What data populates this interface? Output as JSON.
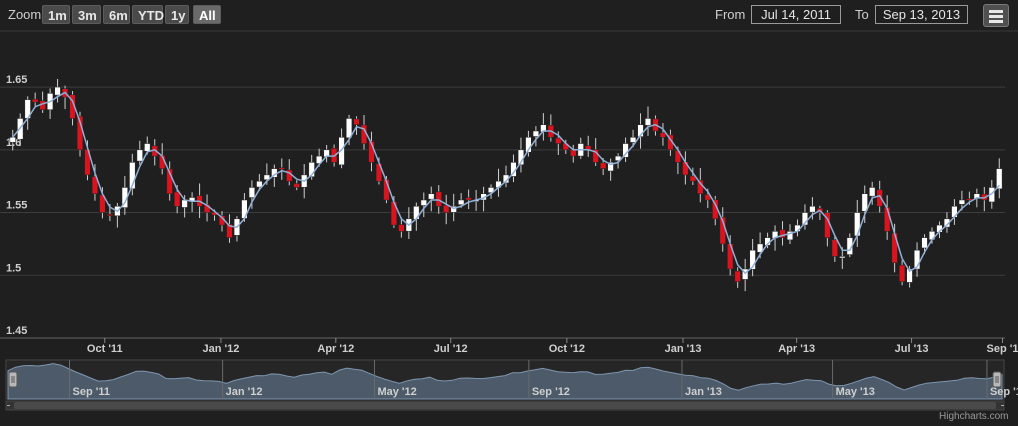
{
  "range_selector": {
    "zoom_label": "Zoom",
    "buttons": [
      "1m",
      "3m",
      "6m",
      "YTD",
      "1y",
      "All"
    ],
    "active": "All",
    "from_label": "From",
    "from_value": "Jul 14, 2011",
    "to_label": "To",
    "to_value": "Sep 13, 2013"
  },
  "export_icon": "menu-icon",
  "credits": "Highcharts.com",
  "colors": {
    "background": "#1f1f1f",
    "up_candle": "#ffffff",
    "down_candle": "#d9141e",
    "moving_average": "#8fb0d8",
    "navigator_fill": "#4c5a6a"
  },
  "chart_data": {
    "type": "candlestick",
    "x_start": "2011-07-14",
    "x_end": "2013-09-13",
    "period": "weekly",
    "ylim": [
      1.45,
      1.67
    ],
    "y_ticks": [
      "1.45",
      "1.5",
      "1.55",
      "1.6",
      "1.65"
    ],
    "y_tick_values": [
      1.45,
      1.5,
      1.55,
      1.6,
      1.65
    ],
    "x_ticks": [
      {
        "label": "Oct '11",
        "date": "2011-10-01"
      },
      {
        "label": "Jan '12",
        "date": "2012-01-01"
      },
      {
        "label": "Apr '12",
        "date": "2012-04-01"
      },
      {
        "label": "Jul '12",
        "date": "2012-07-01"
      },
      {
        "label": "Oct '12",
        "date": "2012-10-01"
      },
      {
        "label": "Jan '13",
        "date": "2013-01-01"
      },
      {
        "label": "Apr '13",
        "date": "2013-04-01"
      },
      {
        "label": "Jul '13",
        "date": "2013-07-01"
      },
      {
        "label": "Sep '1",
        "date": "2013-09-11"
      }
    ],
    "grid": true,
    "moving_average": true,
    "closes": [
      1.61,
      1.625,
      1.64,
      1.638,
      1.632,
      1.645,
      1.65,
      1.642,
      1.625,
      1.6,
      1.58,
      1.565,
      1.55,
      1.548,
      1.555,
      1.57,
      1.59,
      1.6,
      1.605,
      1.595,
      1.585,
      1.565,
      1.555,
      1.56,
      1.562,
      1.555,
      1.55,
      1.548,
      1.54,
      1.53,
      1.545,
      1.56,
      1.57,
      1.575,
      1.58,
      1.585,
      1.585,
      1.575,
      1.57,
      1.58,
      1.59,
      1.595,
      1.6,
      1.59,
      1.61,
      1.625,
      1.62,
      1.605,
      1.59,
      1.575,
      1.56,
      1.54,
      1.535,
      1.545,
      1.555,
      1.56,
      1.565,
      1.555,
      1.55,
      1.555,
      1.56,
      1.56,
      1.56,
      1.565,
      1.57,
      1.575,
      1.58,
      1.59,
      1.6,
      1.61,
      1.615,
      1.62,
      1.61,
      1.605,
      1.6,
      1.595,
      1.605,
      1.6,
      1.59,
      1.585,
      1.59,
      1.595,
      1.605,
      1.61,
      1.62,
      1.625,
      1.615,
      1.61,
      1.6,
      1.59,
      1.58,
      1.575,
      1.565,
      1.56,
      1.545,
      1.525,
      1.505,
      1.495,
      1.505,
      1.52,
      1.525,
      1.53,
      1.535,
      1.53,
      1.535,
      1.54,
      1.55,
      1.555,
      1.55,
      1.53,
      1.515,
      1.515,
      1.53,
      1.55,
      1.565,
      1.57,
      1.555,
      1.535,
      1.51,
      1.495,
      1.505,
      1.52,
      1.53,
      1.535,
      1.54,
      1.545,
      1.555,
      1.56,
      1.56,
      1.565,
      1.56,
      1.57,
      1.585
    ],
    "navigator_x_ticks": [
      {
        "label": "Sep '11",
        "date": "2011-09-01"
      },
      {
        "label": "Jan '12",
        "date": "2012-01-01"
      },
      {
        "label": "May '12",
        "date": "2012-05-01"
      },
      {
        "label": "Sep '12",
        "date": "2012-09-01"
      },
      {
        "label": "Jan '13",
        "date": "2013-01-01"
      },
      {
        "label": "May '13",
        "date": "2013-05-01"
      },
      {
        "label": "Sep '1",
        "date": "2013-09-01"
      }
    ]
  }
}
